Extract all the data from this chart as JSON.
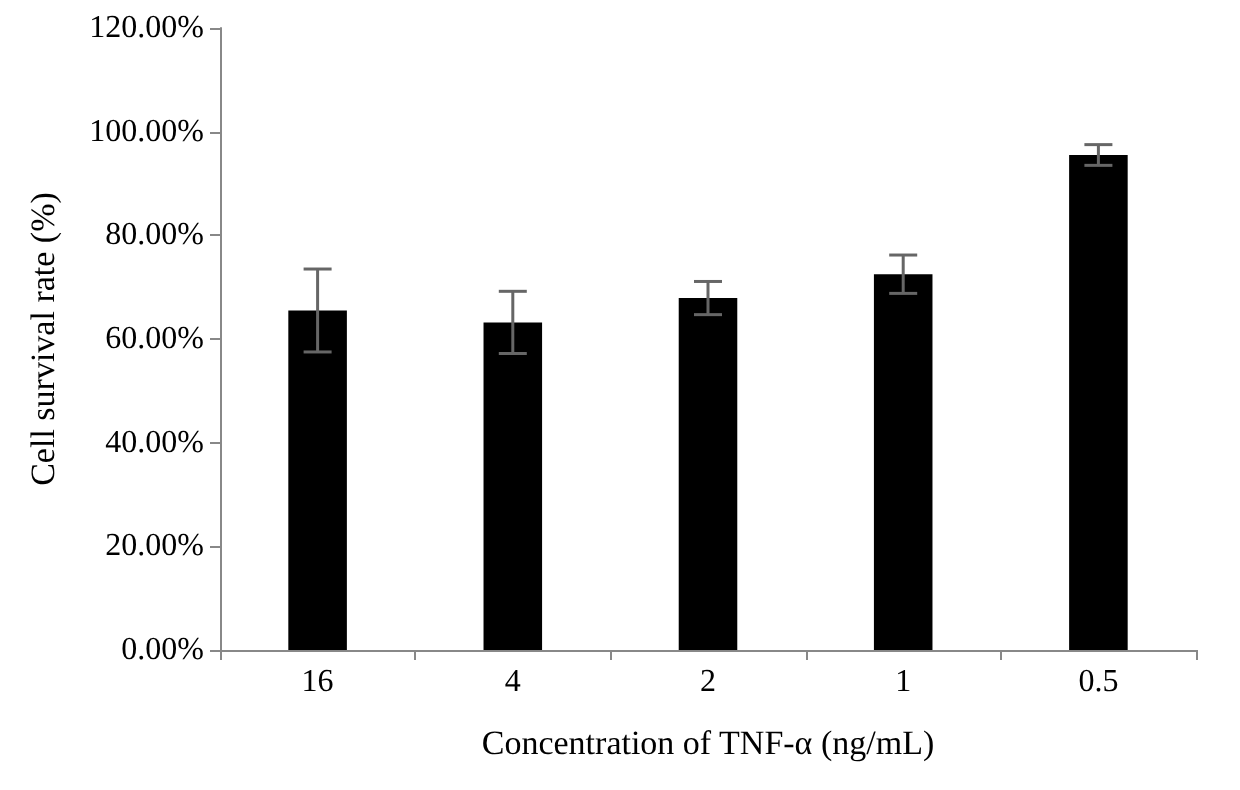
{
  "chart_data": {
    "type": "bar",
    "xlabel": "Concentration of TNF-α (ng/mL)",
    "ylabel": "Cell survival rate (%)",
    "categories": [
      "16",
      "4",
      "2",
      "1",
      "0.5"
    ],
    "values": [
      65.5,
      63.2,
      67.9,
      72.5,
      95.5
    ],
    "errors": [
      8,
      6,
      3.2,
      3.7,
      2
    ],
    "color": "#000000",
    "ylim": [
      0,
      120
    ],
    "yticks": [
      {
        "value": 0,
        "label": "0.00%"
      },
      {
        "value": 20,
        "label": "20.00%"
      },
      {
        "value": 40,
        "label": "40.00%"
      },
      {
        "value": 60,
        "label": "60.00%"
      },
      {
        "value": 80,
        "label": "80.00%"
      },
      {
        "value": 100,
        "label": "100.00%"
      },
      {
        "value": 120,
        "label": "120.00%"
      }
    ],
    "grid": false
  }
}
